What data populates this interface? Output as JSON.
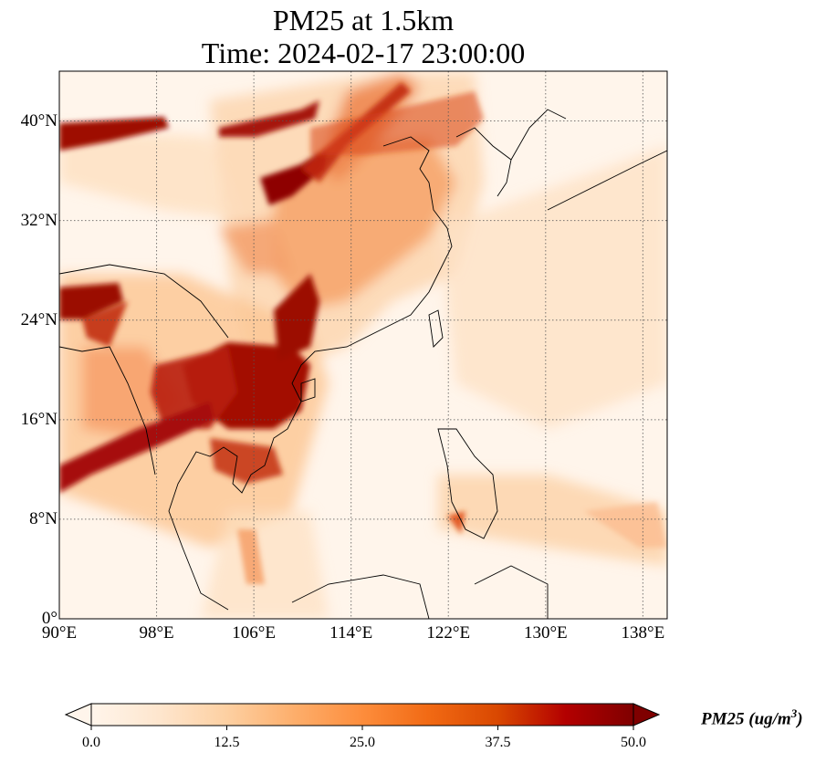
{
  "title": "PM25 at 1.5km",
  "subtitle": "Time: 2024-02-17 23:00:00",
  "map": {
    "extent": {
      "lon": [
        90,
        140
      ],
      "lat": [
        0,
        44
      ]
    },
    "lat_ticks": [
      {
        "value": 0,
        "label": "0°"
      },
      {
        "value": 8,
        "label": "8°N"
      },
      {
        "value": 16,
        "label": "16°N"
      },
      {
        "value": 24,
        "label": "24°N"
      },
      {
        "value": 32,
        "label": "32°N"
      },
      {
        "value": 40,
        "label": "40°N"
      }
    ],
    "lon_ticks": [
      {
        "value": 90,
        "label": "90°E"
      },
      {
        "value": 98,
        "label": "98°E"
      },
      {
        "value": 106,
        "label": "106°E"
      },
      {
        "value": 114,
        "label": "114°E"
      },
      {
        "value": 122,
        "label": "122°E"
      },
      {
        "value": 130,
        "label": "130°E"
      },
      {
        "value": 138,
        "label": "138°E"
      }
    ],
    "gridlines": true,
    "field_color_low": "#fff5eb",
    "field_color_high": "#7f0000"
  },
  "colorbar": {
    "label": "PM25 (ug/m",
    "label_superscript": "3",
    "label_suffix": ")",
    "min": 0,
    "max": 50,
    "extend": "both",
    "ticks": [
      {
        "value": 0,
        "label": "0.0"
      },
      {
        "value": 12.5,
        "label": "12.5"
      },
      {
        "value": 25,
        "label": "25.0"
      },
      {
        "value": 37.5,
        "label": "37.5"
      },
      {
        "value": 50,
        "label": "50.0"
      }
    ],
    "colormap": [
      "#fff5eb",
      "#fee6ce",
      "#fdd0a2",
      "#fdae6b",
      "#fd8d3c",
      "#f16913",
      "#d94801",
      "#b30000",
      "#7f0000"
    ]
  }
}
